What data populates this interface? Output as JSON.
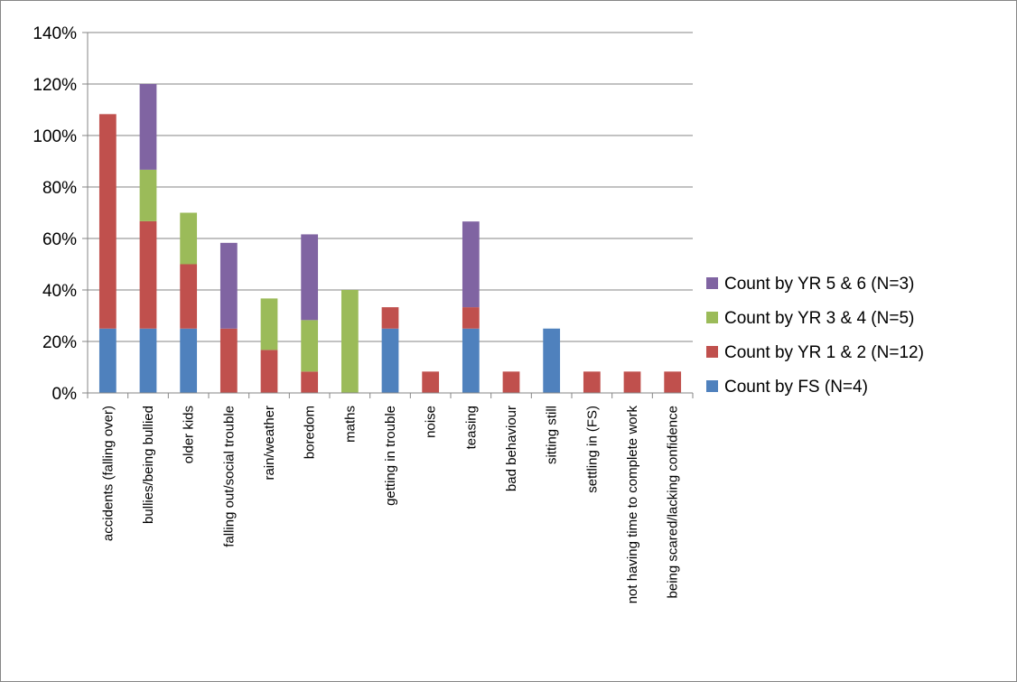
{
  "chart_data": {
    "type": "bar",
    "stacked": true,
    "categories": [
      "accidents (falling over)",
      "bullies/being bullied",
      "older kids",
      "falling out/social trouble",
      "rain/weather",
      "boredom",
      "maths",
      "getting in trouble",
      "noise",
      "teasing",
      "bad behaviour",
      "sitting still",
      "settling in (FS)",
      "not having time to complete work",
      "being scared/lacking confidence"
    ],
    "series": [
      {
        "name": "Count by FS  (N=4)",
        "color": "#4f81bd",
        "values": [
          25,
          25,
          25,
          0,
          0,
          0,
          0,
          25,
          0,
          25,
          0,
          25,
          0,
          0,
          0
        ]
      },
      {
        "name": "Count by YR 1 & 2  (N=12)",
        "color": "#c0504d",
        "values": [
          83.3,
          41.7,
          25,
          25,
          16.7,
          8.3,
          0,
          8.3,
          8.3,
          8.3,
          8.3,
          0,
          8.3,
          8.3,
          8.3
        ]
      },
      {
        "name": "Count by YR 3 & 4 (N=5)",
        "color": "#9bbb59",
        "values": [
          0,
          20,
          20,
          0,
          20,
          20,
          40,
          0,
          0,
          0,
          0,
          0,
          0,
          0,
          0
        ]
      },
      {
        "name": "Count by YR 5 & 6 (N=3)",
        "color": "#8064a2",
        "values": [
          0,
          33.3,
          0,
          33.3,
          0,
          33.3,
          0,
          0,
          0,
          33.3,
          0,
          0,
          0,
          0,
          0
        ]
      }
    ],
    "yticks": [
      "0%",
      "20%",
      "40%",
      "60%",
      "80%",
      "100%",
      "120%",
      "140%"
    ],
    "ylim": [
      0,
      140
    ],
    "y_unit": "%",
    "grid": true,
    "legend_position": "right",
    "legend_order": "reverse"
  }
}
